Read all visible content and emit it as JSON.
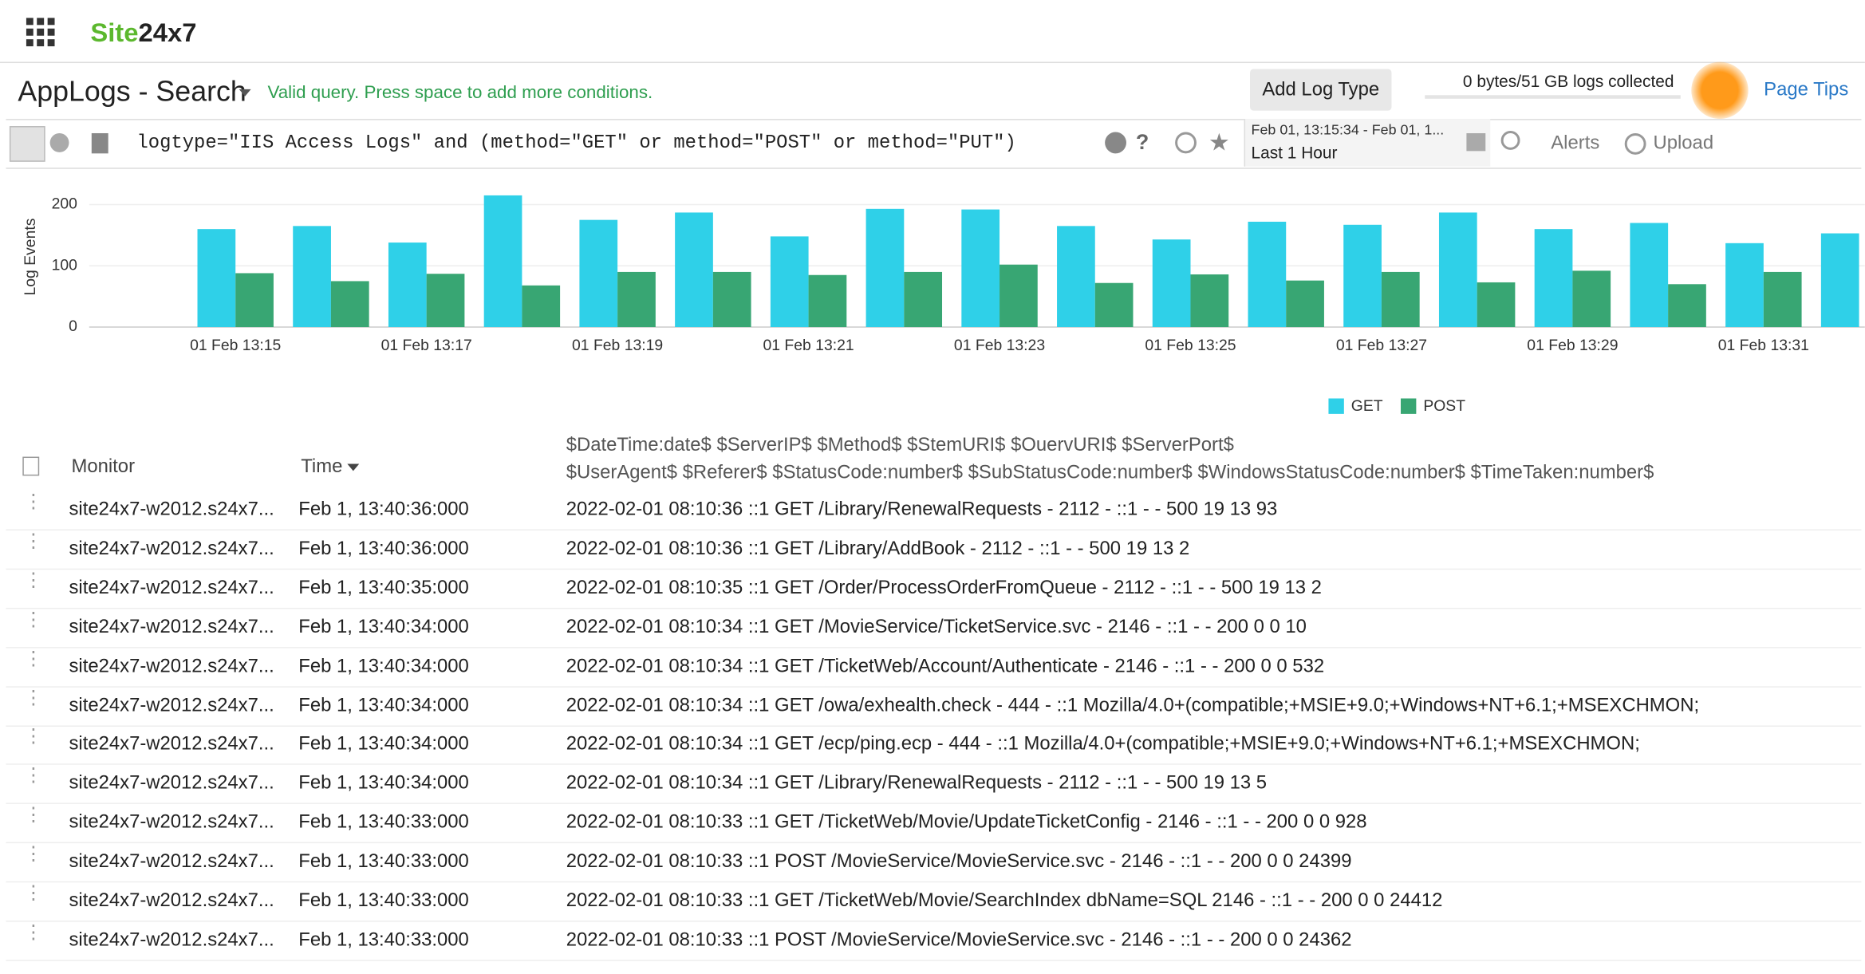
{
  "header": {
    "logo_a": "Site",
    "logo_b": "24x7"
  },
  "toolbar": {
    "title": "AppLogs - Search",
    "status": "Valid query. Press space to add more conditions.",
    "add_log_type": "Add Log Type",
    "usage": "0 bytes/51 GB logs collected",
    "page_tips": "Page Tips"
  },
  "query": {
    "text": "logtype=\"IIS Access Logs\" and (method=\"GET\" or method=\"POST\" or method=\"PUT\")",
    "help": "?",
    "range": "Feb 01, 13:15:34 - Feb 01, 1...",
    "preset": "Last 1 Hour",
    "alerts": "Alerts",
    "upload": "Upload"
  },
  "chart_data": {
    "type": "bar",
    "y_label": "Log Events",
    "categories": [
      "01 Feb 13:15",
      null,
      "01 Feb 13:17",
      null,
      "01 Feb 13:19",
      null,
      "01 Feb 13:21",
      null,
      "01 Feb 13:23",
      null,
      "01 Feb 13:25",
      null,
      "01 Feb 13:27",
      null,
      "01 Feb 13:29",
      null,
      "01 Feb 13:31",
      null
    ],
    "series": [
      {
        "name": "GET",
        "color": "#2fd0e8",
        "values": [
          160,
          165,
          138,
          215,
          175,
          187,
          148,
          193,
          192,
          165,
          143,
          172,
          167,
          187,
          160,
          170,
          137,
          153
        ]
      },
      {
        "name": "POST",
        "color": "#38a673",
        "values": [
          88,
          75,
          87,
          68,
          90,
          90,
          85,
          90,
          102,
          72,
          86,
          76,
          90,
          73,
          92,
          70,
          90,
          null
        ]
      }
    ],
    "ylim": [
      0,
      250
    ],
    "yticks": [
      0,
      100,
      200
    ],
    "grid": true,
    "legend": "bottom"
  },
  "table": {
    "columns": [
      "Monitor",
      "Time"
    ],
    "message_header": [
      "$DateTime:date$ $ServerIP$ $Method$ $StemURI$ $OuervURI$ $ServerPort$",
      "$UserAgent$ $Referer$ $StatusCode:number$ $SubStatusCode:number$ $WindowsStatusCode:number$ $TimeTaken:number$"
    ],
    "rows": [
      [
        "site24x7-w2012.s24x7...",
        "Feb 1, 13:40:36:000",
        "2022-02-01 08:10:36 ::1 GET /Library/RenewalRequests - 2112 - ::1 - - 500 19 13 93"
      ],
      [
        "site24x7-w2012.s24x7...",
        "Feb 1, 13:40:36:000",
        "2022-02-01 08:10:36 ::1 GET /Library/AddBook - 2112 - ::1 - - 500 19 13 2"
      ],
      [
        "site24x7-w2012.s24x7...",
        "Feb 1, 13:40:35:000",
        "2022-02-01 08:10:35 ::1 GET /Order/ProcessOrderFromQueue - 2112 - ::1 - - 500 19 13 2"
      ],
      [
        "site24x7-w2012.s24x7...",
        "Feb 1, 13:40:34:000",
        "2022-02-01 08:10:34 ::1 GET /MovieService/TicketService.svc - 2146 - ::1 - - 200 0 0 10"
      ],
      [
        "site24x7-w2012.s24x7...",
        "Feb 1, 13:40:34:000",
        "2022-02-01 08:10:34 ::1 GET /TicketWeb/Account/Authenticate - 2146 - ::1 - - 200 0 0 532"
      ],
      [
        "site24x7-w2012.s24x7...",
        "Feb 1, 13:40:34:000",
        "2022-02-01 08:10:34 ::1 GET /owa/exhealth.check - 444 - ::1 Mozilla/4.0+(compatible;+MSIE+9.0;+Windows+NT+6.1;+MSEXCHMON;"
      ],
      [
        "site24x7-w2012.s24x7...",
        "Feb 1, 13:40:34:000",
        "2022-02-01 08:10:34 ::1 GET /ecp/ping.ecp - 444 - ::1 Mozilla/4.0+(compatible;+MSIE+9.0;+Windows+NT+6.1;+MSEXCHMON;"
      ],
      [
        "site24x7-w2012.s24x7...",
        "Feb 1, 13:40:34:000",
        "2022-02-01 08:10:34 ::1 GET /Library/RenewalRequests - 2112 - ::1 - - 500 19 13 5"
      ],
      [
        "site24x7-w2012.s24x7...",
        "Feb 1, 13:40:33:000",
        "2022-02-01 08:10:33 ::1 GET /TicketWeb/Movie/UpdateTicketConfig - 2146 - ::1 - - 200 0 0 928"
      ],
      [
        "site24x7-w2012.s24x7...",
        "Feb 1, 13:40:33:000",
        "2022-02-01 08:10:33 ::1 POST /MovieService/MovieService.svc - 2146 - ::1 - - 200 0 0 24399"
      ],
      [
        "site24x7-w2012.s24x7...",
        "Feb 1, 13:40:33:000",
        "2022-02-01 08:10:33 ::1 GET /TicketWeb/Movie/SearchIndex dbName=SQL 2146 - ::1 - - 200 0 0 24412"
      ],
      [
        "site24x7-w2012.s24x7...",
        "Feb 1, 13:40:33:000",
        "2022-02-01 08:10:33 ::1 POST /MovieService/MovieService.svc - 2146 - ::1 - - 200 0 0 24362"
      ]
    ]
  }
}
